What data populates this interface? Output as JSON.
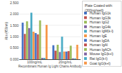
{
  "chart_data": {
    "type": "bar",
    "categories": [
      "100ng/mL",
      "20ng/mL"
    ],
    "series": [
      {
        "name": "Human IgG1k",
        "color": "#4472c4",
        "values": [
          1.62,
          0.62
        ]
      },
      {
        "name": "Human IgG3k",
        "color": "#c0504d",
        "values": [
          1.12,
          0.38
        ]
      },
      {
        "name": "Human IgG2",
        "color": "#9bbb59",
        "values": [
          1.68,
          0.64
        ]
      },
      {
        "name": "Human IgG4k",
        "color": "#8064a2",
        "values": [
          1.38,
          0.32
        ]
      },
      {
        "name": "Human IgM(k-l)",
        "color": "#4bacc6",
        "values": [
          2.06,
          1.0
        ]
      },
      {
        "name": "Human IgE",
        "color": "#f79646",
        "values": [
          1.22,
          0.34
        ]
      },
      {
        "name": "Human IgDA",
        "color": "#4472c4",
        "values": [
          1.16,
          0.34
        ]
      },
      {
        "name": "Human IgAl",
        "color": "#c0504d",
        "values": [
          1.1,
          0.36
        ]
      },
      {
        "name": "Human IgACh",
        "color": "#9bbb59",
        "values": [
          1.72,
          0.6
        ]
      },
      {
        "name": "Mouse IgG(k+l)",
        "color": "#8064a2",
        "values": [
          0.06,
          0.04
        ]
      },
      {
        "name": "Rat IgG(k-l)",
        "color": "#4bacc6",
        "values": [
          0.06,
          0.04
        ]
      },
      {
        "name": "Goat IgG(k+l)",
        "color": "#f79646",
        "values": [
          1.52,
          0.64
        ]
      }
    ],
    "xlabel": "Recombinant Human Ig Light Chains Antibody",
    "ylabel": "Abs (450nm)",
    "legend_title": "Plate Coated with:\n(300ng/well)",
    "ylim": [
      0,
      2.5
    ],
    "yticks": [
      {
        "value": 0,
        "label": "0.000"
      },
      {
        "value": 0.5,
        "label": "0.500"
      },
      {
        "value": 1,
        "label": "1.000"
      },
      {
        "value": 1.5,
        "label": "1.500"
      },
      {
        "value": 2,
        "label": "2.000"
      },
      {
        "value": 2.5,
        "label": "2.500"
      }
    ],
    "grid": true
  }
}
